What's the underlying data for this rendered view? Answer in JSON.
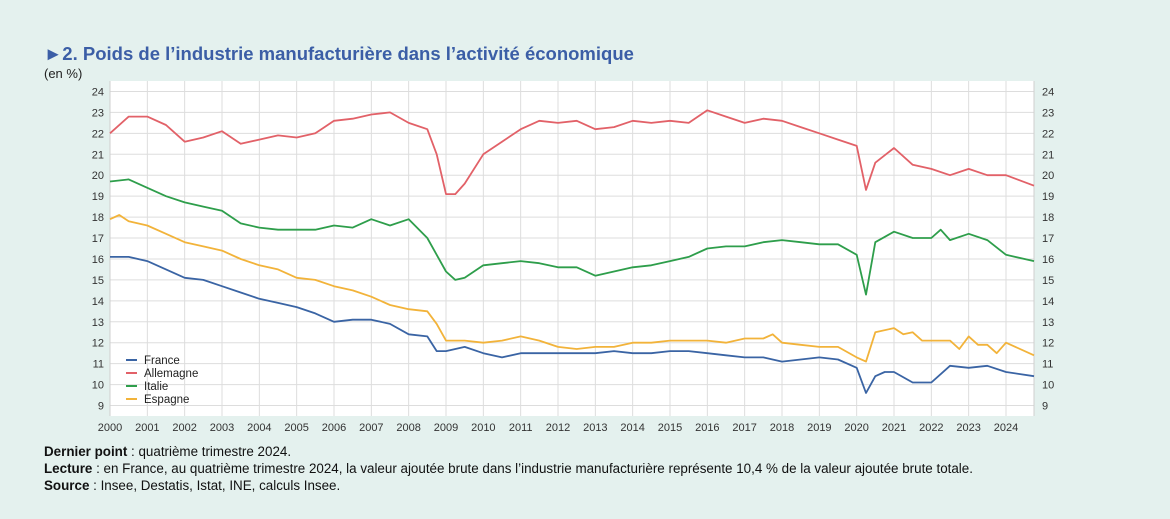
{
  "title": "►2. Poids de l’industrie manufacturière dans l’activité économique",
  "unit": "(en %)",
  "notes": [
    {
      "label": "Dernier point",
      "text": " : quatrième trimestre 2024."
    },
    {
      "label": "Lecture",
      "text": " : en France, au quatrième trimestre 2024, la valeur ajoutée brute dans l’industrie manufacturière représente 10,4 % de la valeur ajoutée brute totale."
    },
    {
      "label": "Source",
      "text": " : Insee, Destatis, Istat, INE, calculs Insee."
    }
  ],
  "chart_data": {
    "type": "line",
    "x_axis": {
      "range": [
        2000.0,
        2024.75
      ],
      "tick_labels": [
        "2000",
        "2001",
        "2002",
        "2003",
        "2004",
        "2005",
        "2006",
        "2007",
        "2008",
        "2009",
        "2010",
        "2011",
        "2012",
        "2013",
        "2014",
        "2015",
        "2016",
        "2017",
        "2018",
        "2019",
        "2020",
        "2021",
        "2022",
        "2023",
        "2024"
      ]
    },
    "y_axis": {
      "range": [
        8.5,
        24.5
      ],
      "tick_labels": [
        "9",
        "10",
        "11",
        "12",
        "13",
        "14",
        "15",
        "16",
        "17",
        "18",
        "19",
        "20",
        "21",
        "22",
        "23",
        "24"
      ],
      "both_sides": true
    },
    "grid": true,
    "legend": "bottom-left",
    "series": [
      {
        "name": "France",
        "color": "#3a64a4",
        "points": [
          [
            2000,
            16.1
          ],
          [
            2000.5,
            16.1
          ],
          [
            2001,
            15.9
          ],
          [
            2001.5,
            15.5
          ],
          [
            2002,
            15.1
          ],
          [
            2002.5,
            15.0
          ],
          [
            2003,
            14.7
          ],
          [
            2003.5,
            14.4
          ],
          [
            2004,
            14.1
          ],
          [
            2004.5,
            13.9
          ],
          [
            2005,
            13.7
          ],
          [
            2005.5,
            13.4
          ],
          [
            2006,
            13.0
          ],
          [
            2006.5,
            13.1
          ],
          [
            2007,
            13.1
          ],
          [
            2007.5,
            12.9
          ],
          [
            2008,
            12.4
          ],
          [
            2008.5,
            12.3
          ],
          [
            2008.75,
            11.6
          ],
          [
            2009,
            11.6
          ],
          [
            2009.5,
            11.8
          ],
          [
            2010,
            11.5
          ],
          [
            2010.5,
            11.3
          ],
          [
            2011,
            11.5
          ],
          [
            2011.5,
            11.5
          ],
          [
            2012,
            11.5
          ],
          [
            2012.5,
            11.5
          ],
          [
            2013,
            11.5
          ],
          [
            2013.5,
            11.6
          ],
          [
            2014,
            11.5
          ],
          [
            2014.5,
            11.5
          ],
          [
            2015,
            11.6
          ],
          [
            2015.5,
            11.6
          ],
          [
            2016,
            11.5
          ],
          [
            2016.5,
            11.4
          ],
          [
            2017,
            11.3
          ],
          [
            2017.5,
            11.3
          ],
          [
            2018,
            11.1
          ],
          [
            2018.5,
            11.2
          ],
          [
            2019,
            11.3
          ],
          [
            2019.5,
            11.2
          ],
          [
            2020,
            10.8
          ],
          [
            2020.25,
            9.6
          ],
          [
            2020.5,
            10.4
          ],
          [
            2020.75,
            10.6
          ],
          [
            2021,
            10.6
          ],
          [
            2021.5,
            10.1
          ],
          [
            2022,
            10.1
          ],
          [
            2022.5,
            10.9
          ],
          [
            2023,
            10.8
          ],
          [
            2023.5,
            10.9
          ],
          [
            2024,
            10.6
          ],
          [
            2024.75,
            10.4
          ]
        ]
      },
      {
        "name": "Allemagne",
        "color": "#e26168",
        "points": [
          [
            2000,
            22.0
          ],
          [
            2000.5,
            22.8
          ],
          [
            2001,
            22.8
          ],
          [
            2001.5,
            22.4
          ],
          [
            2002,
            21.6
          ],
          [
            2002.5,
            21.8
          ],
          [
            2003,
            22.1
          ],
          [
            2003.5,
            21.5
          ],
          [
            2004,
            21.7
          ],
          [
            2004.5,
            21.9
          ],
          [
            2005,
            21.8
          ],
          [
            2005.5,
            22.0
          ],
          [
            2006,
            22.6
          ],
          [
            2006.5,
            22.7
          ],
          [
            2007,
            22.9
          ],
          [
            2007.5,
            23.0
          ],
          [
            2008,
            22.5
          ],
          [
            2008.5,
            22.2
          ],
          [
            2008.75,
            21.0
          ],
          [
            2009,
            19.1
          ],
          [
            2009.25,
            19.1
          ],
          [
            2009.5,
            19.6
          ],
          [
            2010,
            21.0
          ],
          [
            2010.5,
            21.6
          ],
          [
            2011,
            22.2
          ],
          [
            2011.5,
            22.6
          ],
          [
            2012,
            22.5
          ],
          [
            2012.5,
            22.6
          ],
          [
            2013,
            22.2
          ],
          [
            2013.5,
            22.3
          ],
          [
            2014,
            22.6
          ],
          [
            2014.5,
            22.5
          ],
          [
            2015,
            22.6
          ],
          [
            2015.5,
            22.5
          ],
          [
            2016,
            23.1
          ],
          [
            2016.5,
            22.8
          ],
          [
            2017,
            22.5
          ],
          [
            2017.5,
            22.7
          ],
          [
            2018,
            22.6
          ],
          [
            2018.5,
            22.3
          ],
          [
            2019,
            22.0
          ],
          [
            2019.5,
            21.7
          ],
          [
            2020,
            21.4
          ],
          [
            2020.25,
            19.3
          ],
          [
            2020.5,
            20.6
          ],
          [
            2021,
            21.3
          ],
          [
            2021.5,
            20.5
          ],
          [
            2022,
            20.3
          ],
          [
            2022.5,
            20.0
          ],
          [
            2023,
            20.3
          ],
          [
            2023.5,
            20.0
          ],
          [
            2024,
            20.0
          ],
          [
            2024.75,
            19.5
          ]
        ]
      },
      {
        "name": "Italie",
        "color": "#2e9e4b",
        "points": [
          [
            2000,
            19.7
          ],
          [
            2000.5,
            19.8
          ],
          [
            2001,
            19.4
          ],
          [
            2001.5,
            19.0
          ],
          [
            2002,
            18.7
          ],
          [
            2002.5,
            18.5
          ],
          [
            2003,
            18.3
          ],
          [
            2003.5,
            17.7
          ],
          [
            2004,
            17.5
          ],
          [
            2004.5,
            17.4
          ],
          [
            2005,
            17.4
          ],
          [
            2005.5,
            17.4
          ],
          [
            2006,
            17.6
          ],
          [
            2006.5,
            17.5
          ],
          [
            2007,
            17.9
          ],
          [
            2007.5,
            17.6
          ],
          [
            2008,
            17.9
          ],
          [
            2008.5,
            17.0
          ],
          [
            2009,
            15.4
          ],
          [
            2009.25,
            15.0
          ],
          [
            2009.5,
            15.1
          ],
          [
            2010,
            15.7
          ],
          [
            2010.5,
            15.8
          ],
          [
            2011,
            15.9
          ],
          [
            2011.5,
            15.8
          ],
          [
            2012,
            15.6
          ],
          [
            2012.5,
            15.6
          ],
          [
            2013,
            15.2
          ],
          [
            2013.5,
            15.4
          ],
          [
            2014,
            15.6
          ],
          [
            2014.5,
            15.7
          ],
          [
            2015,
            15.9
          ],
          [
            2015.5,
            16.1
          ],
          [
            2016,
            16.5
          ],
          [
            2016.5,
            16.6
          ],
          [
            2017,
            16.6
          ],
          [
            2017.5,
            16.8
          ],
          [
            2018,
            16.9
          ],
          [
            2018.5,
            16.8
          ],
          [
            2019,
            16.7
          ],
          [
            2019.5,
            16.7
          ],
          [
            2020,
            16.2
          ],
          [
            2020.25,
            14.3
          ],
          [
            2020.5,
            16.8
          ],
          [
            2021,
            17.3
          ],
          [
            2021.5,
            17.0
          ],
          [
            2022,
            17.0
          ],
          [
            2022.25,
            17.4
          ],
          [
            2022.5,
            16.9
          ],
          [
            2023,
            17.2
          ],
          [
            2023.5,
            16.9
          ],
          [
            2024,
            16.2
          ],
          [
            2024.75,
            15.9
          ]
        ]
      },
      {
        "name": "Espagne",
        "color": "#f2b33a",
        "points": [
          [
            2000,
            17.9
          ],
          [
            2000.25,
            18.1
          ],
          [
            2000.5,
            17.8
          ],
          [
            2001,
            17.6
          ],
          [
            2001.5,
            17.2
          ],
          [
            2002,
            16.8
          ],
          [
            2002.5,
            16.6
          ],
          [
            2003,
            16.4
          ],
          [
            2003.5,
            16.0
          ],
          [
            2004,
            15.7
          ],
          [
            2004.5,
            15.5
          ],
          [
            2005,
            15.1
          ],
          [
            2005.5,
            15.0
          ],
          [
            2006,
            14.7
          ],
          [
            2006.5,
            14.5
          ],
          [
            2007,
            14.2
          ],
          [
            2007.5,
            13.8
          ],
          [
            2008,
            13.6
          ],
          [
            2008.5,
            13.5
          ],
          [
            2008.75,
            12.9
          ],
          [
            2009,
            12.1
          ],
          [
            2009.5,
            12.1
          ],
          [
            2010,
            12.0
          ],
          [
            2010.5,
            12.1
          ],
          [
            2011,
            12.3
          ],
          [
            2011.5,
            12.1
          ],
          [
            2012,
            11.8
          ],
          [
            2012.5,
            11.7
          ],
          [
            2013,
            11.8
          ],
          [
            2013.5,
            11.8
          ],
          [
            2014,
            12.0
          ],
          [
            2014.5,
            12.0
          ],
          [
            2015,
            12.1
          ],
          [
            2015.5,
            12.1
          ],
          [
            2016,
            12.1
          ],
          [
            2016.5,
            12.0
          ],
          [
            2017,
            12.2
          ],
          [
            2017.5,
            12.2
          ],
          [
            2017.75,
            12.4
          ],
          [
            2018,
            12.0
          ],
          [
            2018.5,
            11.9
          ],
          [
            2019,
            11.8
          ],
          [
            2019.5,
            11.8
          ],
          [
            2020,
            11.3
          ],
          [
            2020.25,
            11.1
          ],
          [
            2020.5,
            12.5
          ],
          [
            2021,
            12.7
          ],
          [
            2021.25,
            12.4
          ],
          [
            2021.5,
            12.5
          ],
          [
            2021.75,
            12.1
          ],
          [
            2022,
            12.1
          ],
          [
            2022.5,
            12.1
          ],
          [
            2022.75,
            11.7
          ],
          [
            2023,
            12.3
          ],
          [
            2023.25,
            11.9
          ],
          [
            2023.5,
            11.9
          ],
          [
            2023.75,
            11.5
          ],
          [
            2024,
            12.0
          ],
          [
            2024.75,
            11.4
          ]
        ]
      }
    ]
  }
}
